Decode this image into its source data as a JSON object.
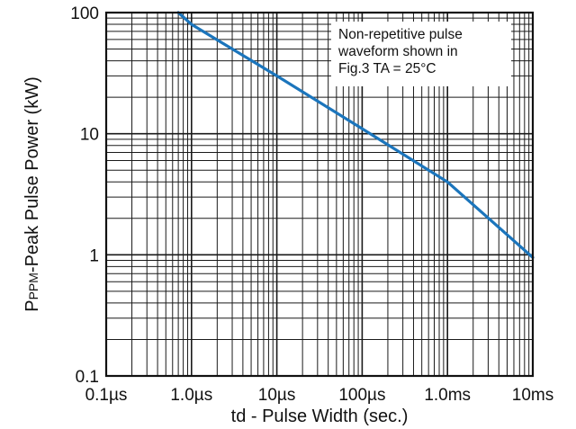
{
  "chart_data": {
    "type": "line",
    "title": "",
    "xlabel": "td - Pulse Width (sec.)",
    "ylabel": {
      "prefix": "P",
      "subscript": "PPM",
      "suffix": "-Peak Pulse Power (kW)"
    },
    "x_scale": "log",
    "y_scale": "log",
    "xlim": [
      1e-07,
      0.01
    ],
    "ylim": [
      0.1,
      100
    ],
    "grid": true,
    "x_ticks": [
      {
        "value": 1e-07,
        "label": "0.1µs"
      },
      {
        "value": 1e-06,
        "label": "1.0µs"
      },
      {
        "value": 1e-05,
        "label": "10µs"
      },
      {
        "value": 0.0001,
        "label": "100µs"
      },
      {
        "value": 0.001,
        "label": "1.0ms"
      },
      {
        "value": 0.01,
        "label": "10ms"
      }
    ],
    "y_ticks": [
      {
        "value": 0.1,
        "label": "0.1"
      },
      {
        "value": 1,
        "label": "1"
      },
      {
        "value": 10,
        "label": "10"
      },
      {
        "value": 100,
        "label": "100"
      }
    ],
    "series": [
      {
        "color": "#1b75bc",
        "x": [
          7e-07,
          1e-06,
          1e-05,
          0.0001,
          0.001,
          0.01
        ],
        "y": [
          100,
          80,
          30,
          11,
          4,
          0.95
        ]
      }
    ],
    "annotation": {
      "lines": [
        "Non-repetitive pulse",
        "waveform shown in",
        "Fig.3 TA = 25°C"
      ]
    }
  }
}
